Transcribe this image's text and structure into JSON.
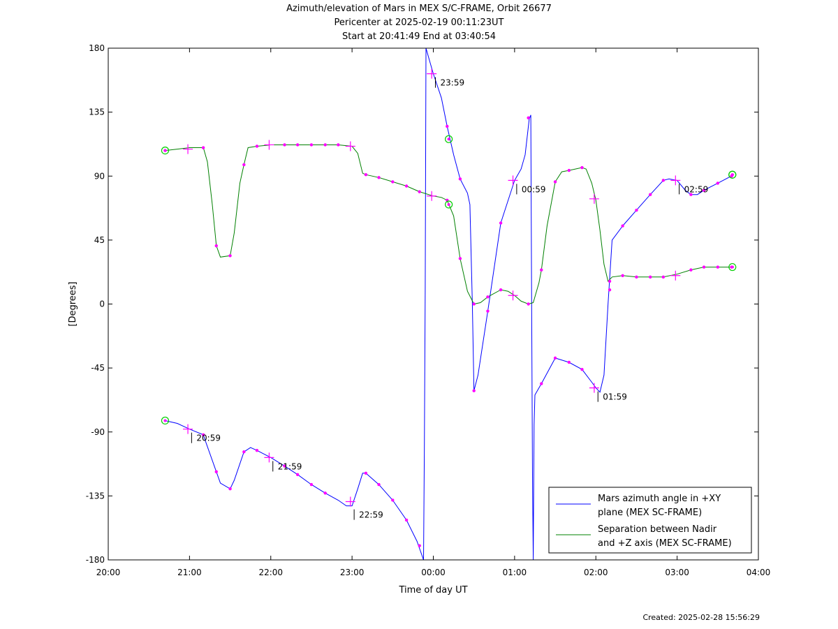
{
  "title_lines": [
    "Azimuth/elevation of Mars in MEX S/C-FRAME,  Orbit 26677",
    "Pericenter at 2025-02-19 00:11:23UT",
    "Start at 20:41:49 End at 03:40:54"
  ],
  "footer": "Created: 2025-02-28 15:56:29",
  "chart_data": {
    "type": "line",
    "xlabel": "Time of day UT",
    "ylabel": "[Degrees]",
    "x_unit": "hours since 20:00 UT",
    "xlim": [
      0,
      8
    ],
    "ylim": [
      -180,
      180
    ],
    "xticks": [
      {
        "v": 0,
        "label": "20:00"
      },
      {
        "v": 1,
        "label": "21:00"
      },
      {
        "v": 2,
        "label": "22:00"
      },
      {
        "v": 3,
        "label": "23:00"
      },
      {
        "v": 4,
        "label": "00:00"
      },
      {
        "v": 5,
        "label": "01:00"
      },
      {
        "v": 6,
        "label": "02:00"
      },
      {
        "v": 7,
        "label": "03:00"
      },
      {
        "v": 8,
        "label": "04:00"
      }
    ],
    "yticks": [
      {
        "v": 180,
        "label": "180"
      },
      {
        "v": 135,
        "label": "135"
      },
      {
        "v": 90,
        "label": "90"
      },
      {
        "v": 45,
        "label": "45"
      },
      {
        "v": 0,
        "label": "0"
      },
      {
        "v": -45,
        "label": "-45"
      },
      {
        "v": -90,
        "label": "-90"
      },
      {
        "v": -135,
        "label": "-135"
      },
      {
        "v": -180,
        "label": "-180"
      }
    ],
    "legend_position": "bottom-right",
    "series": [
      {
        "name": "Mars azimuth angle in +XY plane (MEX SC-FRAME)",
        "legend_lines": [
          "Mars azimuth angle in +XY",
          "plane (MEX SC-FRAME)"
        ],
        "color": "#0000ff",
        "points": [
          [
            0.7,
            -82
          ],
          [
            0.85,
            -84
          ],
          [
            1.0,
            -88
          ],
          [
            1.17,
            -92
          ],
          [
            1.2,
            -97
          ],
          [
            1.33,
            -118
          ],
          [
            1.38,
            -126
          ],
          [
            1.5,
            -130
          ],
          [
            1.55,
            -124
          ],
          [
            1.67,
            -104
          ],
          [
            1.75,
            -101
          ],
          [
            1.83,
            -103
          ],
          [
            2.0,
            -108
          ],
          [
            2.17,
            -114
          ],
          [
            2.33,
            -120
          ],
          [
            2.5,
            -127
          ],
          [
            2.67,
            -133
          ],
          [
            2.83,
            -138
          ],
          [
            2.93,
            -142
          ],
          [
            3.0,
            -142
          ],
          [
            3.07,
            -130
          ],
          [
            3.13,
            -119
          ],
          [
            3.17,
            -119
          ],
          [
            3.33,
            -127
          ],
          [
            3.5,
            -138
          ],
          [
            3.67,
            -152
          ],
          [
            3.8,
            -167
          ],
          [
            3.88,
            -180
          ],
          [
            3.89,
            -100
          ],
          [
            3.9,
            10
          ],
          [
            3.91,
            180
          ],
          [
            3.96,
            170
          ],
          [
            4.0,
            162
          ],
          [
            4.1,
            145
          ],
          [
            4.17,
            125
          ],
          [
            4.25,
            105
          ],
          [
            4.33,
            88
          ],
          [
            4.42,
            78
          ],
          [
            4.45,
            70
          ],
          [
            4.48,
            0
          ],
          [
            4.5,
            -61
          ],
          [
            4.55,
            -50
          ],
          [
            4.67,
            -5
          ],
          [
            4.83,
            57
          ],
          [
            5.0,
            87
          ],
          [
            5.08,
            95
          ],
          [
            5.13,
            105
          ],
          [
            5.18,
            130
          ],
          [
            5.2,
            133
          ],
          [
            5.21,
            0
          ],
          [
            5.22,
            -120
          ],
          [
            5.23,
            -180
          ],
          [
            5.24,
            -85
          ],
          [
            5.25,
            -64
          ],
          [
            5.33,
            -56
          ],
          [
            5.5,
            -38
          ],
          [
            5.67,
            -41
          ],
          [
            5.83,
            -46
          ],
          [
            5.95,
            -55
          ],
          [
            6.0,
            -59
          ],
          [
            6.05,
            -62
          ],
          [
            6.1,
            -50
          ],
          [
            6.15,
            0
          ],
          [
            6.2,
            45
          ],
          [
            6.33,
            55
          ],
          [
            6.5,
            66
          ],
          [
            6.67,
            77
          ],
          [
            6.83,
            87
          ],
          [
            6.9,
            88
          ],
          [
            7.0,
            87
          ],
          [
            7.1,
            80
          ],
          [
            7.17,
            77
          ],
          [
            7.25,
            77
          ],
          [
            7.33,
            80
          ],
          [
            7.5,
            85
          ],
          [
            7.7,
            91
          ]
        ],
        "dots": [
          [
            1.17,
            -92
          ],
          [
            1.33,
            -118
          ],
          [
            1.5,
            -130
          ],
          [
            1.67,
            -104
          ],
          [
            1.83,
            -103
          ],
          [
            2.17,
            -114
          ],
          [
            2.33,
            -120
          ],
          [
            2.5,
            -127
          ],
          [
            2.67,
            -133
          ],
          [
            3.17,
            -119
          ],
          [
            3.33,
            -127
          ],
          [
            3.5,
            -138
          ],
          [
            3.67,
            -152
          ],
          [
            3.83,
            -170
          ],
          [
            4.17,
            125
          ],
          [
            4.33,
            88
          ],
          [
            4.5,
            -61
          ],
          [
            4.67,
            -5
          ],
          [
            4.83,
            57
          ],
          [
            5.17,
            131
          ],
          [
            5.33,
            -56
          ],
          [
            5.5,
            -38
          ],
          [
            5.67,
            -41
          ],
          [
            5.83,
            -46
          ],
          [
            6.17,
            10
          ],
          [
            6.33,
            55
          ],
          [
            6.5,
            66
          ],
          [
            6.67,
            77
          ],
          [
            6.83,
            87
          ],
          [
            7.17,
            77
          ],
          [
            7.33,
            80
          ],
          [
            7.5,
            85
          ],
          [
            7.67,
            90
          ]
        ],
        "crosses": [
          [
            0.98,
            -88
          ],
          [
            1.98,
            -108
          ],
          [
            2.98,
            -139
          ],
          [
            3.98,
            162
          ],
          [
            4.98,
            87
          ],
          [
            5.98,
            -59
          ],
          [
            6.98,
            87
          ]
        ],
        "circles": [
          [
            0.7,
            -82
          ],
          [
            7.68,
            91
          ]
        ]
      },
      {
        "name": "Separation between Nadir and +Z axis (MEX SC-FRAME)",
        "legend_lines": [
          "Separation between Nadir",
          "and +Z axis (MEX SC-FRAME)"
        ],
        "color": "#008000",
        "points": [
          [
            0.7,
            108
          ],
          [
            0.85,
            109
          ],
          [
            1.0,
            110
          ],
          [
            1.17,
            110
          ],
          [
            1.22,
            100
          ],
          [
            1.28,
            70
          ],
          [
            1.33,
            41
          ],
          [
            1.38,
            33
          ],
          [
            1.5,
            34
          ],
          [
            1.55,
            50
          ],
          [
            1.62,
            85
          ],
          [
            1.67,
            98
          ],
          [
            1.72,
            110
          ],
          [
            1.83,
            111
          ],
          [
            2.0,
            112
          ],
          [
            2.17,
            112
          ],
          [
            2.33,
            112
          ],
          [
            2.5,
            112
          ],
          [
            2.67,
            112
          ],
          [
            2.83,
            112
          ],
          [
            3.0,
            111
          ],
          [
            3.07,
            106
          ],
          [
            3.13,
            92
          ],
          [
            3.17,
            91
          ],
          [
            3.33,
            89
          ],
          [
            3.5,
            86
          ],
          [
            3.67,
            83
          ],
          [
            3.83,
            79
          ],
          [
            4.0,
            76
          ],
          [
            4.1,
            75
          ],
          [
            4.17,
            73
          ],
          [
            4.25,
            62
          ],
          [
            4.33,
            32
          ],
          [
            4.42,
            9
          ],
          [
            4.5,
            0
          ],
          [
            4.58,
            1
          ],
          [
            4.67,
            5
          ],
          [
            4.83,
            10
          ],
          [
            4.92,
            9
          ],
          [
            5.0,
            6
          ],
          [
            5.08,
            2
          ],
          [
            5.17,
            0
          ],
          [
            5.23,
            1
          ],
          [
            5.3,
            15
          ],
          [
            5.33,
            24
          ],
          [
            5.4,
            55
          ],
          [
            5.5,
            86
          ],
          [
            5.58,
            93
          ],
          [
            5.67,
            94
          ],
          [
            5.83,
            96
          ],
          [
            5.88,
            95
          ],
          [
            5.95,
            85
          ],
          [
            6.0,
            73
          ],
          [
            6.05,
            52
          ],
          [
            6.1,
            28
          ],
          [
            6.15,
            16
          ],
          [
            6.2,
            19
          ],
          [
            6.33,
            20
          ],
          [
            6.5,
            19
          ],
          [
            6.67,
            19
          ],
          [
            6.83,
            19
          ],
          [
            7.0,
            21
          ],
          [
            7.17,
            24
          ],
          [
            7.33,
            26
          ],
          [
            7.5,
            26
          ],
          [
            7.7,
            26
          ]
        ],
        "dots": [
          [
            0.7,
            108
          ],
          [
            1.17,
            110
          ],
          [
            1.33,
            41
          ],
          [
            1.5,
            34
          ],
          [
            1.67,
            98
          ],
          [
            1.83,
            111
          ],
          [
            2.17,
            112
          ],
          [
            2.33,
            112
          ],
          [
            2.5,
            112
          ],
          [
            2.67,
            112
          ],
          [
            2.83,
            112
          ],
          [
            3.17,
            91
          ],
          [
            3.33,
            89
          ],
          [
            3.5,
            86
          ],
          [
            3.67,
            83
          ],
          [
            3.83,
            79
          ],
          [
            4.17,
            73
          ],
          [
            4.33,
            32
          ],
          [
            4.5,
            0
          ],
          [
            4.67,
            5
          ],
          [
            4.83,
            10
          ],
          [
            5.17,
            0
          ],
          [
            5.33,
            24
          ],
          [
            5.5,
            86
          ],
          [
            5.67,
            94
          ],
          [
            5.83,
            96
          ],
          [
            6.17,
            16
          ],
          [
            6.33,
            20
          ],
          [
            6.5,
            19
          ],
          [
            6.67,
            19
          ],
          [
            6.83,
            19
          ],
          [
            7.17,
            24
          ],
          [
            7.33,
            26
          ],
          [
            7.5,
            26
          ],
          [
            7.67,
            26
          ]
        ],
        "crosses": [
          [
            0.98,
            109
          ],
          [
            1.98,
            112
          ],
          [
            2.98,
            111
          ],
          [
            3.98,
            76
          ],
          [
            4.98,
            6
          ],
          [
            5.98,
            74
          ],
          [
            6.98,
            20
          ]
        ],
        "circles": [
          [
            0.7,
            108
          ],
          [
            4.19,
            116
          ],
          [
            4.19,
            70
          ],
          [
            7.68,
            91
          ],
          [
            7.68,
            26
          ]
        ]
      }
    ],
    "annotations": [
      {
        "x": 1.0,
        "y": -88,
        "label": "20:59"
      },
      {
        "x": 2.0,
        "y": -108,
        "label": "21:59"
      },
      {
        "x": 3.0,
        "y": -142,
        "label": "22:59"
      },
      {
        "x": 4.0,
        "y": 162,
        "label": "23:59"
      },
      {
        "x": 5.0,
        "y": 87,
        "label": "00:59"
      },
      {
        "x": 6.0,
        "y": -59,
        "label": "01:59"
      },
      {
        "x": 7.0,
        "y": 87,
        "label": "02:59"
      }
    ],
    "marker_color": "#ff00ff",
    "circle_color": "#00cc00"
  }
}
